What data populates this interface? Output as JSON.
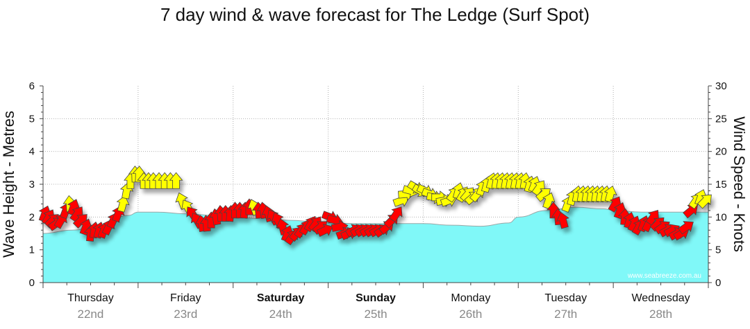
{
  "chart_data": {
    "type": "area",
    "title": "7 day wind & wave forecast for The Ledge (Surf Spot)",
    "ylabel": "Wave Height - Metres",
    "y2label": "Wind Speed - Knots",
    "ylim": [
      0,
      6
    ],
    "y2lim": [
      0,
      30
    ],
    "yticks": [
      "0",
      "1",
      "2",
      "3",
      "4",
      "5",
      "6"
    ],
    "y2ticks": [
      "0",
      "5",
      "10",
      "15",
      "20",
      "25",
      "30"
    ],
    "days": [
      {
        "name": "Thursday",
        "date": "22nd",
        "bold": false
      },
      {
        "name": "Friday",
        "date": "23rd",
        "bold": false
      },
      {
        "name": "Saturday",
        "date": "24th",
        "bold": true
      },
      {
        "name": "Sunday",
        "date": "25th",
        "bold": true
      },
      {
        "name": "Monday",
        "date": "26th",
        "bold": false
      },
      {
        "name": "Tuesday",
        "date": "27th",
        "bold": false
      },
      {
        "name": "Wednesday",
        "date": "28th",
        "bold": false
      }
    ],
    "wave_height": {
      "x_days": [
        0,
        0.3,
        0.6,
        0.9,
        1.0,
        1.2,
        1.5,
        1.8,
        2.0,
        2.3,
        2.6,
        2.9,
        3.0,
        3.3,
        3.6,
        3.9,
        4.0,
        4.3,
        4.6,
        4.9,
        5.0,
        5.3,
        5.6,
        5.9,
        6.0,
        6.3,
        6.6,
        6.9,
        7.0
      ],
      "values": [
        1.5,
        1.6,
        1.75,
        2.05,
        2.15,
        2.15,
        2.1,
        2.05,
        2.0,
        1.95,
        1.9,
        1.85,
        1.82,
        1.8,
        1.8,
        1.8,
        1.8,
        1.75,
        1.72,
        1.82,
        2.0,
        2.2,
        2.3,
        2.25,
        2.2,
        2.15,
        2.15,
        2.15,
        2.15
      ]
    },
    "wind": {
      "colors": {
        "strong": "#ff0000",
        "moderate": "#ffff00"
      },
      "arrows": [
        {
          "d": 0.02,
          "kt": 10.5,
          "dir": 200,
          "c": "strong"
        },
        {
          "d": 0.06,
          "kt": 10.0,
          "dir": 210,
          "c": "strong"
        },
        {
          "d": 0.1,
          "kt": 9.5,
          "dir": 225,
          "c": "strong"
        },
        {
          "d": 0.14,
          "kt": 9.0,
          "dir": 235,
          "c": "strong"
        },
        {
          "d": 0.19,
          "kt": 9.5,
          "dir": 210,
          "c": "strong"
        },
        {
          "d": 0.24,
          "kt": 11.0,
          "dir": 200,
          "c": "strong"
        },
        {
          "d": 0.28,
          "kt": 12.0,
          "dir": 175,
          "c": "moderate"
        },
        {
          "d": 0.32,
          "kt": 11.5,
          "dir": 200,
          "c": "strong"
        },
        {
          "d": 0.36,
          "kt": 10.5,
          "dir": 215,
          "c": "strong"
        },
        {
          "d": 0.4,
          "kt": 9.5,
          "dir": 225,
          "c": "strong"
        },
        {
          "d": 0.45,
          "kt": 8.5,
          "dir": 200,
          "c": "strong"
        },
        {
          "d": 0.5,
          "kt": 7.5,
          "dir": 185,
          "c": "strong"
        },
        {
          "d": 0.54,
          "kt": 8.0,
          "dir": 190,
          "c": "strong"
        },
        {
          "d": 0.59,
          "kt": 8.0,
          "dir": 195,
          "c": "strong"
        },
        {
          "d": 0.64,
          "kt": 8.0,
          "dir": 200,
          "c": "strong"
        },
        {
          "d": 0.69,
          "kt": 8.5,
          "dir": 205,
          "c": "strong"
        },
        {
          "d": 0.74,
          "kt": 9.5,
          "dir": 205,
          "c": "strong"
        },
        {
          "d": 0.79,
          "kt": 10.5,
          "dir": 200,
          "c": "strong"
        },
        {
          "d": 0.84,
          "kt": 12.0,
          "dir": 195,
          "c": "moderate"
        },
        {
          "d": 0.88,
          "kt": 14.0,
          "dir": 190,
          "c": "moderate"
        },
        {
          "d": 0.92,
          "kt": 15.5,
          "dir": 180,
          "c": "moderate"
        },
        {
          "d": 0.97,
          "kt": 16.5,
          "dir": 178,
          "c": "moderate"
        },
        {
          "d": 1.01,
          "kt": 16.5,
          "dir": 182,
          "c": "moderate"
        },
        {
          "d": 1.06,
          "kt": 15.5,
          "dir": 180,
          "c": "moderate"
        },
        {
          "d": 1.11,
          "kt": 15.5,
          "dir": 180,
          "c": "moderate"
        },
        {
          "d": 1.16,
          "kt": 15.5,
          "dir": 180,
          "c": "moderate"
        },
        {
          "d": 1.22,
          "kt": 15.5,
          "dir": 180,
          "c": "moderate"
        },
        {
          "d": 1.28,
          "kt": 15.5,
          "dir": 180,
          "c": "moderate"
        },
        {
          "d": 1.34,
          "kt": 15.5,
          "dir": 180,
          "c": "moderate"
        },
        {
          "d": 1.4,
          "kt": 15.5,
          "dir": 180,
          "c": "moderate"
        },
        {
          "d": 1.46,
          "kt": 12.5,
          "dir": 160,
          "c": "moderate"
        },
        {
          "d": 1.52,
          "kt": 11.5,
          "dir": 150,
          "c": "moderate"
        },
        {
          "d": 1.57,
          "kt": 10.5,
          "dir": 145,
          "c": "strong"
        },
        {
          "d": 1.62,
          "kt": 9.5,
          "dir": 150,
          "c": "strong"
        },
        {
          "d": 1.67,
          "kt": 9.0,
          "dir": 170,
          "c": "strong"
        },
        {
          "d": 1.72,
          "kt": 9.0,
          "dir": 175,
          "c": "strong"
        },
        {
          "d": 1.77,
          "kt": 9.5,
          "dir": 180,
          "c": "strong"
        },
        {
          "d": 1.82,
          "kt": 10.0,
          "dir": 170,
          "c": "strong"
        },
        {
          "d": 1.87,
          "kt": 10.5,
          "dir": 175,
          "c": "strong"
        },
        {
          "d": 1.92,
          "kt": 10.5,
          "dir": 180,
          "c": "strong"
        },
        {
          "d": 1.97,
          "kt": 10.5,
          "dir": 185,
          "c": "strong"
        },
        {
          "d": 2.02,
          "kt": 11.0,
          "dir": 180,
          "c": "strong"
        },
        {
          "d": 2.07,
          "kt": 11.0,
          "dir": 180,
          "c": "strong"
        },
        {
          "d": 2.12,
          "kt": 11.0,
          "dir": 185,
          "c": "strong"
        },
        {
          "d": 2.17,
          "kt": 11.5,
          "dir": 180,
          "c": "strong"
        },
        {
          "d": 2.22,
          "kt": 11.5,
          "dir": 160,
          "c": "moderate"
        },
        {
          "d": 2.27,
          "kt": 11.0,
          "dir": 175,
          "c": "strong"
        },
        {
          "d": 2.32,
          "kt": 11.0,
          "dir": 170,
          "c": "strong"
        },
        {
          "d": 2.37,
          "kt": 10.5,
          "dir": 165,
          "c": "strong"
        },
        {
          "d": 2.42,
          "kt": 10.0,
          "dir": 150,
          "c": "strong"
        },
        {
          "d": 2.47,
          "kt": 9.5,
          "dir": 155,
          "c": "strong"
        },
        {
          "d": 2.52,
          "kt": 8.5,
          "dir": 165,
          "c": "strong"
        },
        {
          "d": 2.57,
          "kt": 7.5,
          "dir": 200,
          "c": "strong"
        },
        {
          "d": 2.62,
          "kt": 7.0,
          "dir": 215,
          "c": "strong"
        },
        {
          "d": 2.67,
          "kt": 7.5,
          "dir": 220,
          "c": "strong"
        },
        {
          "d": 2.72,
          "kt": 8.0,
          "dir": 215,
          "c": "strong"
        },
        {
          "d": 2.77,
          "kt": 8.5,
          "dir": 210,
          "c": "strong"
        },
        {
          "d": 2.82,
          "kt": 9.0,
          "dir": 210,
          "c": "strong"
        },
        {
          "d": 2.87,
          "kt": 9.0,
          "dir": 215,
          "c": "strong"
        },
        {
          "d": 2.92,
          "kt": 8.5,
          "dir": 230,
          "c": "strong"
        },
        {
          "d": 2.97,
          "kt": 8.0,
          "dir": 245,
          "c": "strong"
        },
        {
          "d": 3.02,
          "kt": 10.0,
          "dir": 290,
          "c": "strong"
        },
        {
          "d": 3.07,
          "kt": 9.5,
          "dir": 285,
          "c": "strong"
        },
        {
          "d": 3.12,
          "kt": 8.5,
          "dir": 260,
          "c": "strong"
        },
        {
          "d": 3.17,
          "kt": 7.5,
          "dir": 250,
          "c": "strong"
        },
        {
          "d": 3.22,
          "kt": 7.5,
          "dir": 245,
          "c": "strong"
        },
        {
          "d": 3.27,
          "kt": 8.0,
          "dir": 240,
          "c": "strong"
        },
        {
          "d": 3.32,
          "kt": 8.0,
          "dir": 240,
          "c": "strong"
        },
        {
          "d": 3.37,
          "kt": 8.0,
          "dir": 240,
          "c": "strong"
        },
        {
          "d": 3.42,
          "kt": 8.0,
          "dir": 240,
          "c": "strong"
        },
        {
          "d": 3.47,
          "kt": 8.0,
          "dir": 240,
          "c": "strong"
        },
        {
          "d": 3.52,
          "kt": 8.0,
          "dir": 240,
          "c": "strong"
        },
        {
          "d": 3.57,
          "kt": 8.0,
          "dir": 235,
          "c": "strong"
        },
        {
          "d": 3.62,
          "kt": 8.5,
          "dir": 230,
          "c": "strong"
        },
        {
          "d": 3.67,
          "kt": 9.5,
          "dir": 225,
          "c": "strong"
        },
        {
          "d": 3.72,
          "kt": 10.5,
          "dir": 215,
          "c": "strong"
        },
        {
          "d": 3.77,
          "kt": 12.5,
          "dir": 250,
          "c": "moderate"
        },
        {
          "d": 3.82,
          "kt": 13.5,
          "dir": 265,
          "c": "moderate"
        },
        {
          "d": 3.87,
          "kt": 14.0,
          "dir": 285,
          "c": "moderate"
        },
        {
          "d": 3.92,
          "kt": 14.5,
          "dir": 300,
          "c": "moderate"
        },
        {
          "d": 3.97,
          "kt": 14.0,
          "dir": 300,
          "c": "moderate"
        },
        {
          "d": 4.02,
          "kt": 14.0,
          "dir": 295,
          "c": "moderate"
        },
        {
          "d": 4.07,
          "kt": 13.5,
          "dir": 290,
          "c": "moderate"
        },
        {
          "d": 4.12,
          "kt": 13.0,
          "dir": 280,
          "c": "moderate"
        },
        {
          "d": 4.17,
          "kt": 13.0,
          "dir": 270,
          "c": "moderate"
        },
        {
          "d": 4.22,
          "kt": 12.5,
          "dir": 260,
          "c": "moderate"
        },
        {
          "d": 4.27,
          "kt": 12.5,
          "dir": 250,
          "c": "moderate"
        },
        {
          "d": 4.32,
          "kt": 13.5,
          "dir": 215,
          "c": "moderate"
        },
        {
          "d": 4.37,
          "kt": 14.0,
          "dir": 195,
          "c": "moderate"
        },
        {
          "d": 4.42,
          "kt": 13.5,
          "dir": 210,
          "c": "moderate"
        },
        {
          "d": 4.47,
          "kt": 13.5,
          "dir": 220,
          "c": "moderate"
        },
        {
          "d": 4.52,
          "kt": 13.0,
          "dir": 230,
          "c": "moderate"
        },
        {
          "d": 4.57,
          "kt": 13.5,
          "dir": 220,
          "c": "moderate"
        },
        {
          "d": 4.62,
          "kt": 14.5,
          "dir": 200,
          "c": "moderate"
        },
        {
          "d": 4.67,
          "kt": 15.0,
          "dir": 195,
          "c": "moderate"
        },
        {
          "d": 4.72,
          "kt": 15.5,
          "dir": 195,
          "c": "moderate"
        },
        {
          "d": 4.77,
          "kt": 15.5,
          "dir": 190,
          "c": "moderate"
        },
        {
          "d": 4.82,
          "kt": 15.5,
          "dir": 190,
          "c": "moderate"
        },
        {
          "d": 4.87,
          "kt": 15.5,
          "dir": 190,
          "c": "moderate"
        },
        {
          "d": 4.92,
          "kt": 15.5,
          "dir": 190,
          "c": "moderate"
        },
        {
          "d": 4.97,
          "kt": 15.5,
          "dir": 190,
          "c": "moderate"
        },
        {
          "d": 5.02,
          "kt": 15.5,
          "dir": 190,
          "c": "moderate"
        },
        {
          "d": 5.07,
          "kt": 15.5,
          "dir": 190,
          "c": "moderate"
        },
        {
          "d": 5.12,
          "kt": 15.0,
          "dir": 195,
          "c": "moderate"
        },
        {
          "d": 5.17,
          "kt": 15.0,
          "dir": 200,
          "c": "moderate"
        },
        {
          "d": 5.22,
          "kt": 14.5,
          "dir": 215,
          "c": "moderate"
        },
        {
          "d": 5.27,
          "kt": 13.5,
          "dir": 230,
          "c": "moderate"
        },
        {
          "d": 5.32,
          "kt": 12.5,
          "dir": 200,
          "c": "moderate"
        },
        {
          "d": 5.37,
          "kt": 11.0,
          "dir": 180,
          "c": "strong"
        },
        {
          "d": 5.42,
          "kt": 10.0,
          "dir": 175,
          "c": "strong"
        },
        {
          "d": 5.47,
          "kt": 9.5,
          "dir": 165,
          "c": "strong"
        },
        {
          "d": 5.52,
          "kt": 12.0,
          "dir": 200,
          "c": "moderate"
        },
        {
          "d": 5.57,
          "kt": 13.0,
          "dir": 195,
          "c": "moderate"
        },
        {
          "d": 5.62,
          "kt": 13.5,
          "dir": 190,
          "c": "moderate"
        },
        {
          "d": 5.67,
          "kt": 13.5,
          "dir": 190,
          "c": "moderate"
        },
        {
          "d": 5.72,
          "kt": 13.5,
          "dir": 190,
          "c": "moderate"
        },
        {
          "d": 5.77,
          "kt": 13.5,
          "dir": 190,
          "c": "moderate"
        },
        {
          "d": 5.82,
          "kt": 13.5,
          "dir": 190,
          "c": "moderate"
        },
        {
          "d": 5.87,
          "kt": 13.5,
          "dir": 190,
          "c": "moderate"
        },
        {
          "d": 5.92,
          "kt": 13.5,
          "dir": 190,
          "c": "moderate"
        },
        {
          "d": 5.97,
          "kt": 13.5,
          "dir": 195,
          "c": "moderate"
        },
        {
          "d": 6.02,
          "kt": 12.0,
          "dir": 210,
          "c": "strong"
        },
        {
          "d": 6.07,
          "kt": 11.0,
          "dir": 200,
          "c": "strong"
        },
        {
          "d": 6.12,
          "kt": 10.0,
          "dir": 185,
          "c": "strong"
        },
        {
          "d": 6.17,
          "kt": 9.5,
          "dir": 195,
          "c": "strong"
        },
        {
          "d": 6.22,
          "kt": 9.0,
          "dir": 205,
          "c": "strong"
        },
        {
          "d": 6.27,
          "kt": 8.5,
          "dir": 210,
          "c": "strong"
        },
        {
          "d": 6.32,
          "kt": 9.0,
          "dir": 200,
          "c": "strong"
        },
        {
          "d": 6.37,
          "kt": 9.0,
          "dir": 205,
          "c": "strong"
        },
        {
          "d": 6.42,
          "kt": 10.0,
          "dir": 215,
          "c": "strong"
        },
        {
          "d": 6.47,
          "kt": 9.0,
          "dir": 225,
          "c": "strong"
        },
        {
          "d": 6.52,
          "kt": 8.5,
          "dir": 235,
          "c": "strong"
        },
        {
          "d": 6.57,
          "kt": 8.0,
          "dir": 240,
          "c": "strong"
        },
        {
          "d": 6.62,
          "kt": 8.0,
          "dir": 240,
          "c": "strong"
        },
        {
          "d": 6.67,
          "kt": 7.5,
          "dir": 240,
          "c": "strong"
        },
        {
          "d": 6.72,
          "kt": 7.5,
          "dir": 240,
          "c": "strong"
        },
        {
          "d": 6.77,
          "kt": 8.5,
          "dir": 235,
          "c": "strong"
        },
        {
          "d": 6.82,
          "kt": 11.0,
          "dir": 230,
          "c": "strong"
        },
        {
          "d": 6.87,
          "kt": 12.5,
          "dir": 215,
          "c": "moderate"
        },
        {
          "d": 6.92,
          "kt": 13.0,
          "dir": 200,
          "c": "moderate"
        },
        {
          "d": 6.97,
          "kt": 12.5,
          "dir": 225,
          "c": "moderate"
        }
      ]
    },
    "watermark": "www.seabreeze.com.au"
  },
  "colors": {
    "wave_fill": "#80f8f8",
    "wave_line": "#9aa6a6",
    "grid": "#b0b0b0",
    "axis": "#444444"
  }
}
